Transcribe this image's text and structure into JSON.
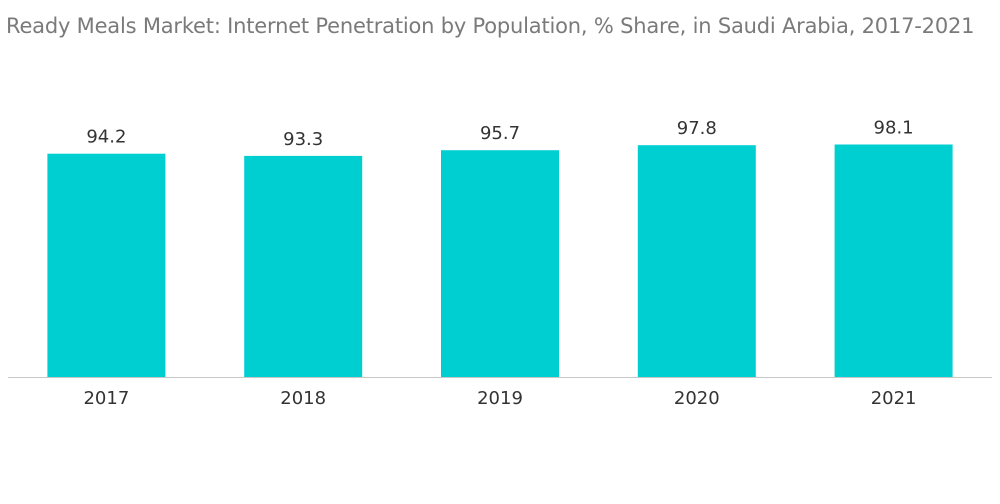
{
  "chart_data": {
    "type": "bar",
    "title": "Ready Meals Market: Internet Penetration by Population, % Share, in Saudi Arabia, 2017-2021",
    "categories": [
      "2017",
      "2018",
      "2019",
      "2020",
      "2021"
    ],
    "values": [
      94.2,
      93.3,
      95.7,
      97.8,
      98.1
    ],
    "value_labels": [
      "94.2",
      "93.3",
      "95.7",
      "97.8",
      "98.1"
    ],
    "xlabel": "",
    "ylabel": "",
    "ylim": [
      0,
      100
    ],
    "grid": false,
    "legend": "none",
    "bar_color": "#00cfd1",
    "axis_color": "#c8c8c8"
  }
}
